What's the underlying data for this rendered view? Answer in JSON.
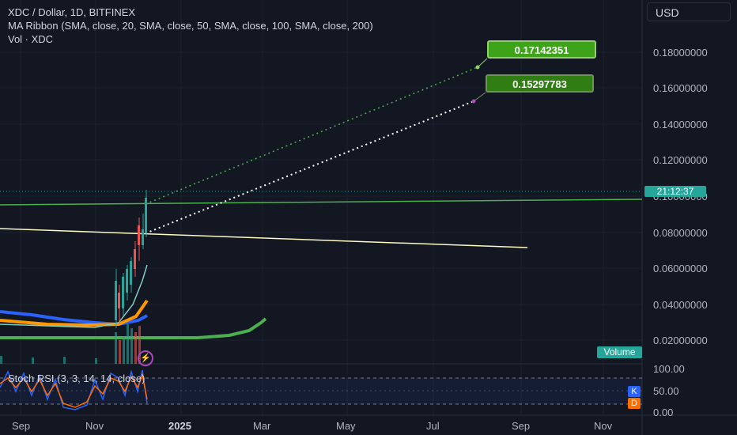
{
  "legend": {
    "title": "XDC / Dollar, 1D, BITFINEX",
    "ma_ribbon": "MA Ribbon (SMA, close, 20, SMA, close, 50, SMA, close, 100, SMA, close, 200)",
    "vol": "Vol · XDC"
  },
  "currency_button": "USD",
  "targets": [
    "0.17142351",
    "0.15297783"
  ],
  "price_axis": [
    "0.18000000",
    "0.16000000",
    "0.14000000",
    "0.12000000",
    "0.10000000",
    "0.08000000",
    "0.06000000",
    "0.04000000",
    "0.02000000"
  ],
  "countdown": "21:12:37",
  "volume_label": "Volume",
  "stoch_rsi": {
    "label": "Stoch RSI (3, 3, 14, 14, close)",
    "ticks": [
      "100.00",
      "50.00",
      "0.00"
    ],
    "k": "K",
    "d": "D"
  },
  "time_axis": [
    "Sep",
    "Nov",
    "2025",
    "Mar",
    "May",
    "Jul",
    "Sep",
    "Nov"
  ],
  "icons": {
    "alert": "lightning-bolt-icon"
  },
  "colors": {
    "background": "#131722",
    "accent_green": "#4caf50",
    "ma_orange": "#ff9800",
    "ma_blue": "#2962ff",
    "trend_yellow": "#fff9c4",
    "teal": "#26a69a"
  }
}
